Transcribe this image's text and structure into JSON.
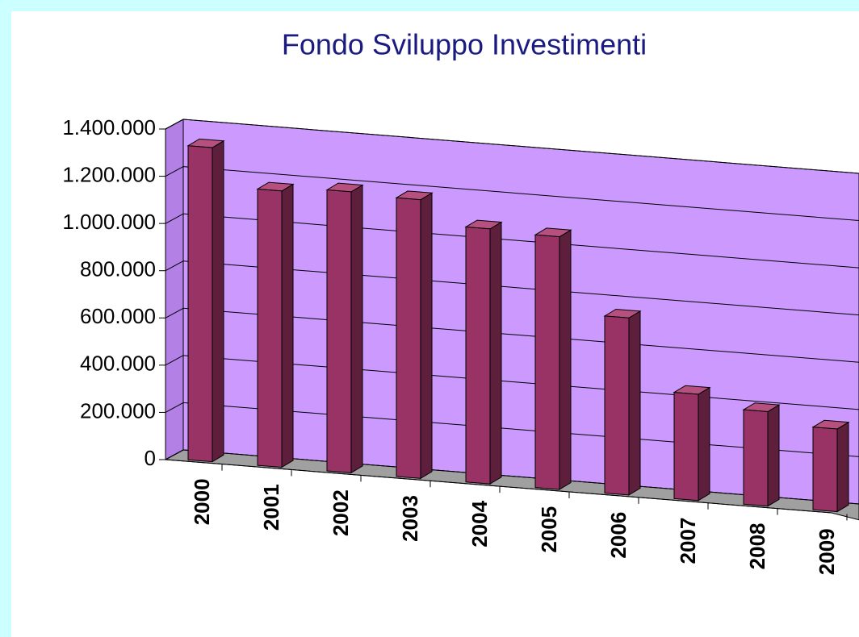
{
  "chart_data": {
    "type": "bar3d",
    "title": "Fondo Sviluppo Investimenti",
    "categories": [
      "2000",
      "2001",
      "2002",
      "2003",
      "2004",
      "2005",
      "2006",
      "2007",
      "2008",
      "2009"
    ],
    "values": [
      1330000,
      1170000,
      1190000,
      1180000,
      1080000,
      1070000,
      750000,
      450000,
      400000,
      350000
    ],
    "color": "#993366",
    "ylim": [
      0,
      1400000
    ],
    "yticks": [
      0,
      {
        "value": 200000,
        "label": "200.000"
      },
      {
        "value": 400000,
        "label": "400.000"
      },
      {
        "value": 600000,
        "label": "600.000"
      },
      {
        "value": 800000,
        "label": "800.000"
      },
      {
        "value": 1000000,
        "label": "1.000.000"
      },
      {
        "value": 1200000,
        "label": "1.200.000"
      },
      {
        "value": 1400000,
        "label": "1.400.000"
      }
    ],
    "grid": true
  }
}
